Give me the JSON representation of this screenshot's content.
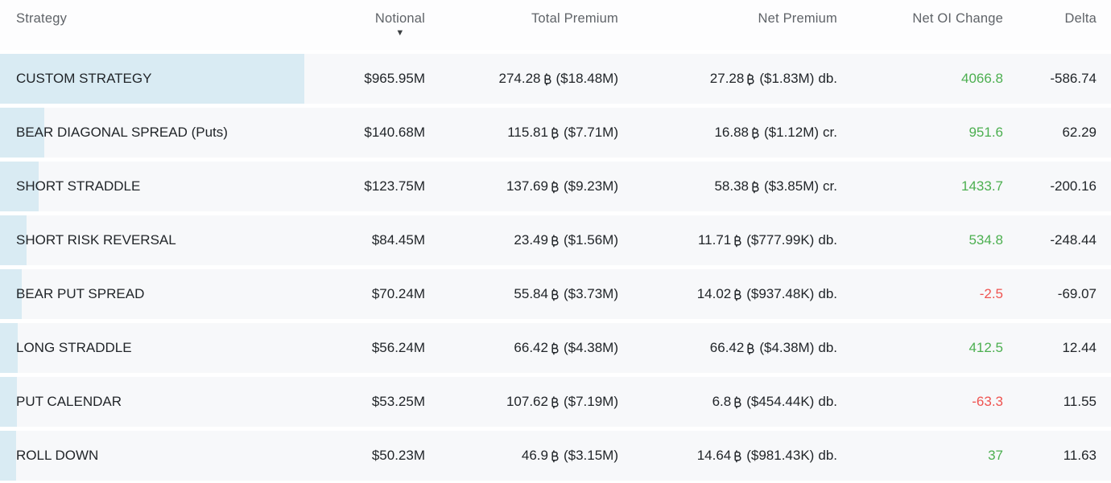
{
  "colors": {
    "positive": "#4caf50",
    "negative": "#ef5350",
    "bar": "#d9ebf3",
    "row_background": "#f7f8fa",
    "header_text": "#5f6368",
    "body_text": "#212529"
  },
  "icons": {
    "sort_descending": "▼",
    "btc_symbol": "₿"
  },
  "table": {
    "columns": [
      "Strategy",
      "Notional",
      "Total Premium",
      "Net Premium",
      "Net OI Change",
      "Delta"
    ],
    "sorted_column": "Notional",
    "sort_direction": "descending",
    "rows": [
      {
        "strategy": "CUSTOM STRATEGY",
        "notional": "$965.95M",
        "notional_m": 965.95,
        "total_premium_btc": "274.28",
        "total_premium_usd": "($18.48M)",
        "net_premium_btc": "27.28",
        "net_premium_usd": "($1.83M)",
        "net_premium_side": "db.",
        "net_oi_change": "4066.8",
        "delta": "-586.74"
      },
      {
        "strategy": "BEAR DIAGONAL SPREAD (Puts)",
        "notional": "$140.68M",
        "notional_m": 140.68,
        "total_premium_btc": "115.81",
        "total_premium_usd": "($7.71M)",
        "net_premium_btc": "16.88",
        "net_premium_usd": "($1.12M)",
        "net_premium_side": "cr.",
        "net_oi_change": "951.6",
        "delta": "62.29"
      },
      {
        "strategy": "SHORT STRADDLE",
        "notional": "$123.75M",
        "notional_m": 123.75,
        "total_premium_btc": "137.69",
        "total_premium_usd": "($9.23M)",
        "net_premium_btc": "58.38",
        "net_premium_usd": "($3.85M)",
        "net_premium_side": "cr.",
        "net_oi_change": "1433.7",
        "delta": "-200.16"
      },
      {
        "strategy": "SHORT RISK REVERSAL",
        "notional": "$84.45M",
        "notional_m": 84.45,
        "total_premium_btc": "23.49",
        "total_premium_usd": "($1.56M)",
        "net_premium_btc": "11.71",
        "net_premium_usd": "($777.99K)",
        "net_premium_side": "db.",
        "net_oi_change": "534.8",
        "delta": "-248.44"
      },
      {
        "strategy": "BEAR PUT SPREAD",
        "notional": "$70.24M",
        "notional_m": 70.24,
        "total_premium_btc": "55.84",
        "total_premium_usd": "($3.73M)",
        "net_premium_btc": "14.02",
        "net_premium_usd": "($937.48K)",
        "net_premium_side": "db.",
        "net_oi_change": "-2.5",
        "delta": "-69.07"
      },
      {
        "strategy": "LONG STRADDLE",
        "notional": "$56.24M",
        "notional_m": 56.24,
        "total_premium_btc": "66.42",
        "total_premium_usd": "($4.38M)",
        "net_premium_btc": "66.42",
        "net_premium_usd": "($4.38M)",
        "net_premium_side": "db.",
        "net_oi_change": "412.5",
        "delta": "12.44"
      },
      {
        "strategy": "PUT CALENDAR",
        "notional": "$53.25M",
        "notional_m": 53.25,
        "total_premium_btc": "107.62",
        "total_premium_usd": "($7.19M)",
        "net_premium_btc": "6.8",
        "net_premium_usd": "($454.44K)",
        "net_premium_side": "db.",
        "net_oi_change": "-63.3",
        "delta": "11.55"
      },
      {
        "strategy": "ROLL DOWN",
        "notional": "$50.23M",
        "notional_m": 50.23,
        "total_premium_btc": "46.9",
        "total_premium_usd": "($3.15M)",
        "net_premium_btc": "14.64",
        "net_premium_usd": "($981.43K)",
        "net_premium_side": "db.",
        "net_oi_change": "37",
        "delta": "11.63"
      }
    ]
  }
}
